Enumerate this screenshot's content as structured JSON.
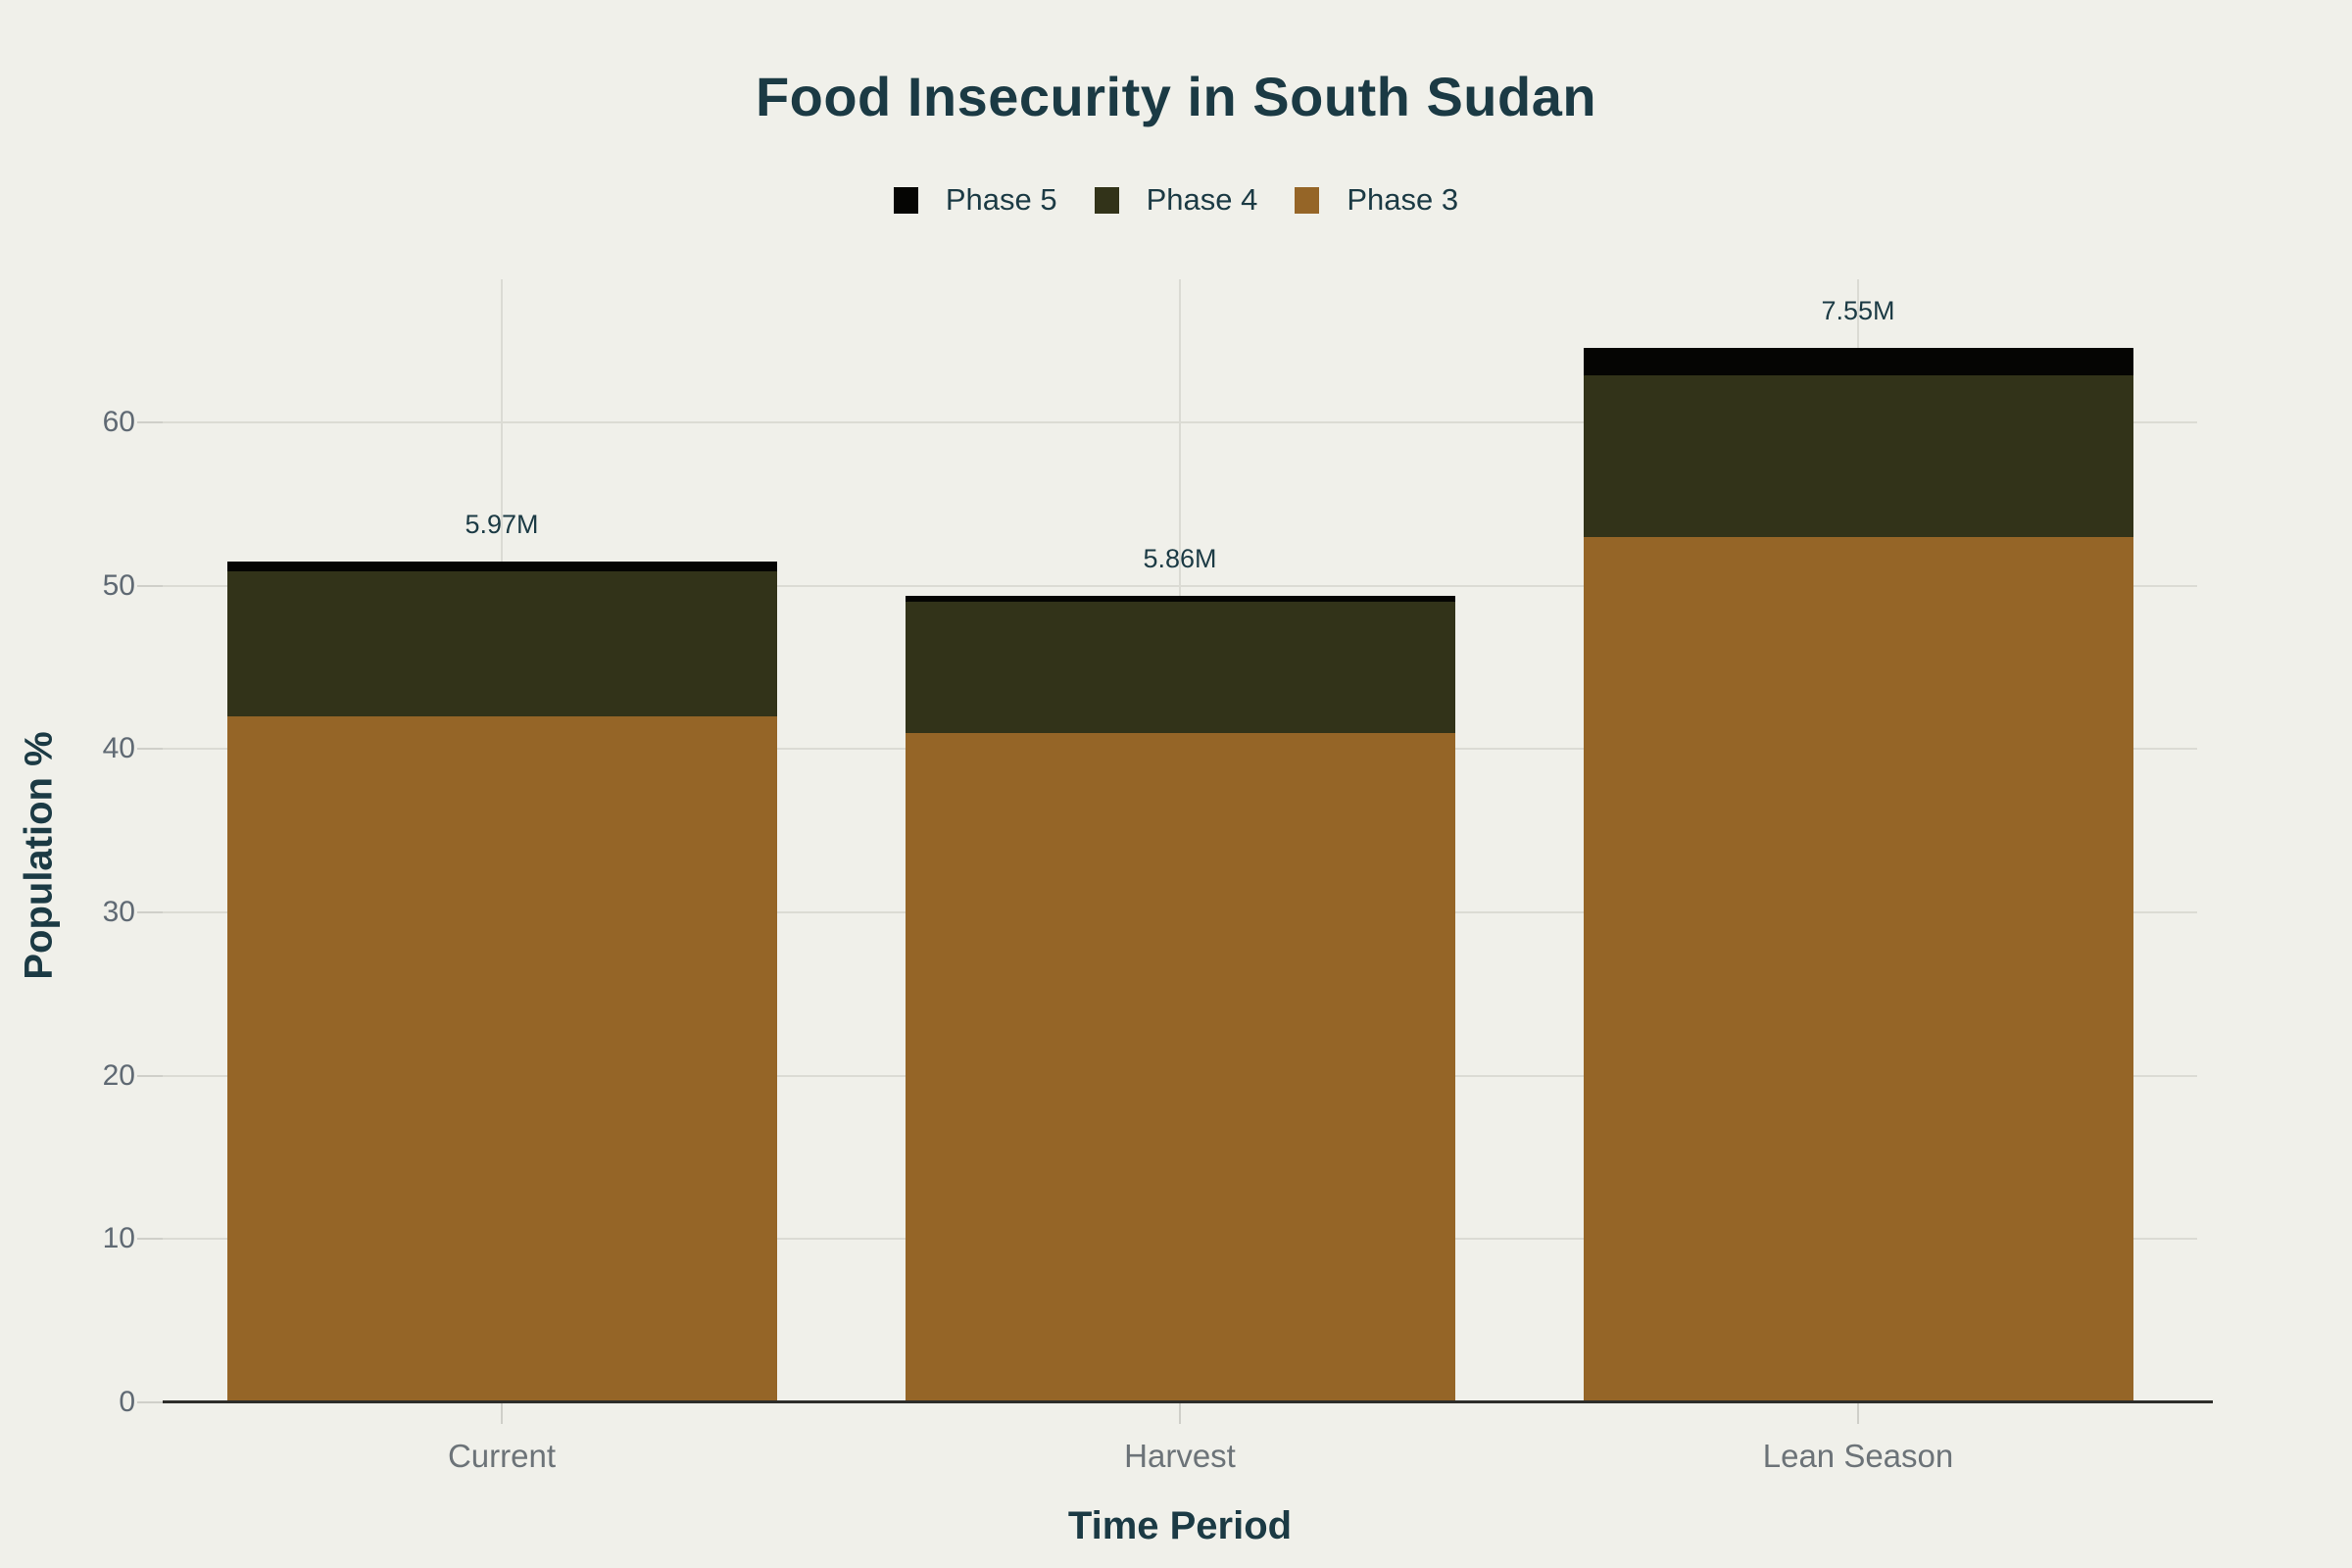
{
  "chart_data": {
    "type": "bar",
    "stacked": true,
    "title": "Food Insecurity in South Sudan",
    "xlabel": "Time Period",
    "ylabel": "Population %",
    "categories": [
      "Current",
      "Harvest",
      "Lean Season"
    ],
    "series": [
      {
        "name": "Phase 3",
        "color": "#956527",
        "values": [
          42,
          41,
          53
        ]
      },
      {
        "name": "Phase 4",
        "color": "#323319",
        "values": [
          8.9,
          8,
          9.9
        ]
      },
      {
        "name": "Phase 5",
        "color": "#050503",
        "values": [
          0.55,
          0.4,
          1.65
        ]
      }
    ],
    "totals": [
      51.45,
      49.4,
      64.55
    ],
    "bar_total_labels": [
      "5.97M",
      "5.86M",
      "7.55M"
    ],
    "yticks": [
      0,
      10,
      20,
      30,
      40,
      50,
      60
    ],
    "ylim": [
      0,
      68.75
    ],
    "grid": true,
    "legend_order": [
      "Phase 5",
      "Phase 4",
      "Phase 3"
    ],
    "legend_position": "top-center"
  },
  "colors": {
    "background": "#F0F0EA",
    "title": "#1B3A44",
    "axis_title": "#1B3A44",
    "tick_label": "#5F6973",
    "category_label": "#6C7378",
    "value_label": "#1B3A44",
    "grid": "#DBDBD4",
    "tick": "#CFCFC9",
    "axis_line": "#2D2D2A",
    "phase3": "#956527",
    "phase4": "#323319",
    "phase5": "#050503"
  }
}
